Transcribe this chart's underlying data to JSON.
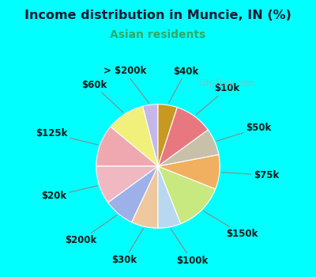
{
  "title": "Income distribution in Muncie, IN (%)",
  "subtitle": "Asian residents",
  "title_color": "#1a1a2e",
  "subtitle_color": "#2aaa6e",
  "background_color": "#00ffff",
  "chart_bg_top": "#e8f5f0",
  "chart_bg_bottom": "#d0ead8",
  "watermark": "City-Data.com",
  "labels": [
    "> $200k",
    "$60k",
    "$125k",
    "$20k",
    "$200k",
    "$30k",
    "$100k",
    "$150k",
    "$75k",
    "$50k",
    "$10k",
    "$40k"
  ],
  "values": [
    4,
    10,
    11,
    10,
    8,
    7,
    6,
    13,
    9,
    7,
    10,
    5
  ],
  "colors": [
    "#c5b8e8",
    "#f0f07a",
    "#f0a8b0",
    "#f0b8c0",
    "#9db0e8",
    "#f0c8a0",
    "#b8d8f0",
    "#c8e880",
    "#f0b060",
    "#c8c0a8",
    "#e87880",
    "#c89820"
  ],
  "startangle": 90,
  "label_fontsize": 8.5,
  "figsize": [
    4.0,
    3.5
  ],
  "dpi": 100
}
